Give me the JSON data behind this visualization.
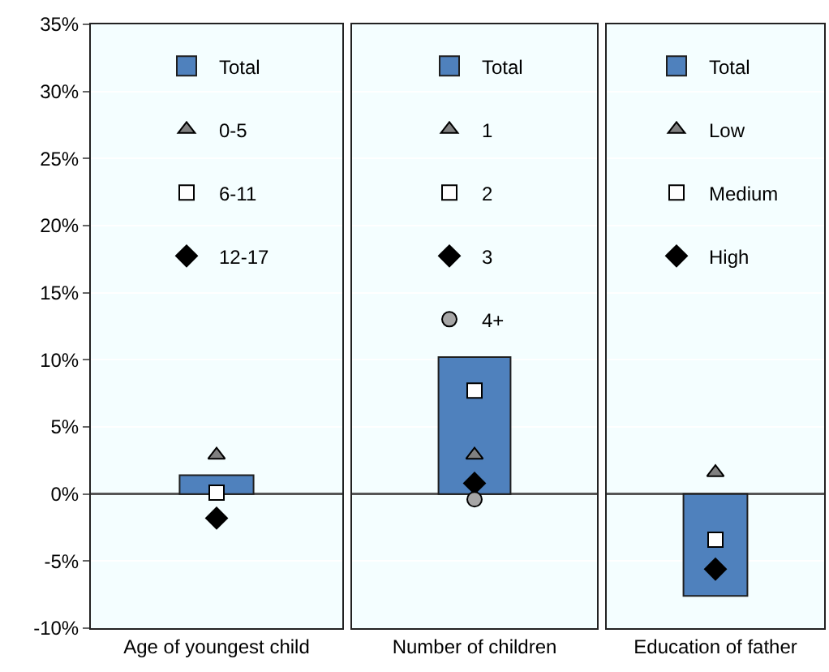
{
  "chart_data": [
    {
      "type": "bar",
      "categories": [
        "Age of youngest child"
      ],
      "ylim": [
        -10,
        35
      ],
      "yticks": [
        {
          "value": -10,
          "label": "-10%"
        },
        {
          "value": -5,
          "label": "-5%"
        },
        {
          "value": 0,
          "label": "0%"
        },
        {
          "value": 5,
          "label": "5%"
        },
        {
          "value": 10,
          "label": "10%"
        },
        {
          "value": 15,
          "label": "15%"
        },
        {
          "value": 20,
          "label": "20%"
        },
        {
          "value": 25,
          "label": "25%"
        },
        {
          "value": 30,
          "label": "30%"
        },
        {
          "value": 35,
          "label": "35%"
        }
      ],
      "grid": "y",
      "legend": "top",
      "series": [
        {
          "name": "Total",
          "color": "#4f81bd",
          "values": [
            1.4
          ]
        },
        {
          "name": "0-5",
          "type": "scatter",
          "marker": "triangle",
          "color": "#808080",
          "values": [
            2.9
          ]
        },
        {
          "name": "6-11",
          "type": "scatter",
          "marker": "square",
          "color": "#ffffff",
          "values": [
            0.1
          ]
        },
        {
          "name": "12-17",
          "type": "scatter",
          "marker": "diamond",
          "color": "#000000",
          "values": [
            -1.8
          ]
        }
      ]
    },
    {
      "type": "bar",
      "categories": [
        "Number of children"
      ],
      "ylim": [
        -10,
        35
      ],
      "yticks": [
        {
          "value": -10,
          "label": null
        },
        {
          "value": -5,
          "label": null
        },
        {
          "value": 0,
          "label": null
        },
        {
          "value": 5,
          "label": null
        },
        {
          "value": 10,
          "label": null
        },
        {
          "value": 15,
          "label": null
        },
        {
          "value": 20,
          "label": null
        },
        {
          "value": 25,
          "label": null
        },
        {
          "value": 30,
          "label": null
        },
        {
          "value": 35,
          "label": null
        }
      ],
      "tick_labels": "x",
      "grid": "y",
      "legend": "top",
      "series": [
        {
          "name": "Total",
          "color": "#4f81bd",
          "values": [
            10.2
          ]
        },
        {
          "name": "1",
          "type": "scatter",
          "marker": "triangle",
          "color": "#808080",
          "values": [
            2.9
          ]
        },
        {
          "name": "2",
          "type": "scatter",
          "marker": "square",
          "color": "#ffffff",
          "values": [
            7.7
          ]
        },
        {
          "name": "3",
          "type": "scatter",
          "marker": "diamond",
          "color": "#000000",
          "values": [
            0.8
          ]
        },
        {
          "name": "4+",
          "type": "scatter",
          "marker": "circle",
          "color": "#a6a6a6",
          "values": [
            -0.4
          ]
        }
      ]
    },
    {
      "type": "bar",
      "categories": [
        "Education of father"
      ],
      "ylim": [
        -10,
        35
      ],
      "yticks": [
        {
          "value": -10,
          "label": null
        },
        {
          "value": -5,
          "label": null
        },
        {
          "value": 0,
          "label": null
        },
        {
          "value": 5,
          "label": null
        },
        {
          "value": 10,
          "label": null
        },
        {
          "value": 15,
          "label": null
        },
        {
          "value": 20,
          "label": null
        },
        {
          "value": 25,
          "label": null
        },
        {
          "value": 30,
          "label": null
        },
        {
          "value": 35,
          "label": null
        }
      ],
      "tick_labels": "x",
      "grid": "y",
      "legend": "top",
      "series": [
        {
          "name": "Total",
          "color": "#4f81bd",
          "values": [
            -7.6
          ]
        },
        {
          "name": "Low",
          "type": "scatter",
          "marker": "triangle",
          "color": "#808080",
          "values": [
            1.6
          ]
        },
        {
          "name": "Medium",
          "type": "scatter",
          "marker": "square",
          "color": "#ffffff",
          "values": [
            -3.4
          ]
        },
        {
          "name": "High",
          "type": "scatter",
          "marker": "diamond",
          "color": "#000000",
          "values": [
            -5.6
          ]
        }
      ]
    }
  ]
}
